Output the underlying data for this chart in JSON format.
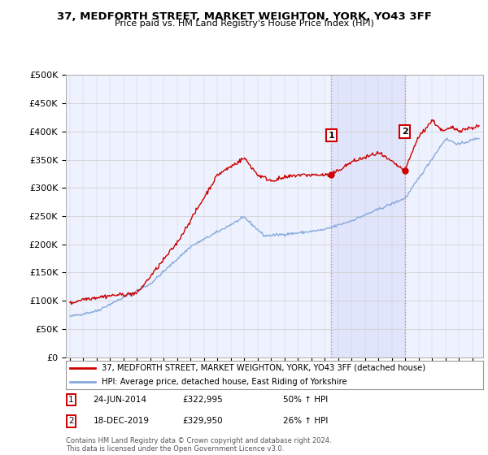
{
  "title": "37, MEDFORTH STREET, MARKET WEIGHTON, YORK, YO43 3FF",
  "subtitle": "Price paid vs. HM Land Registry's House Price Index (HPI)",
  "ylim": [
    0,
    500000
  ],
  "yticks": [
    0,
    50000,
    100000,
    150000,
    200000,
    250000,
    300000,
    350000,
    400000,
    450000,
    500000
  ],
  "ytick_labels": [
    "£0",
    "£50K",
    "£100K",
    "£150K",
    "£200K",
    "£250K",
    "£300K",
    "£350K",
    "£400K",
    "£450K",
    "£500K"
  ],
  "sale1_date": 2014.48,
  "sale1_price": 322995,
  "sale2_date": 2019.96,
  "sale2_price": 329950,
  "line1_color": "#cc0000",
  "line2_color": "#88aadd",
  "vline_color": "#dd8888",
  "vline_style": ":",
  "legend_line1": "37, MEDFORTH STREET, MARKET WEIGHTON, YORK, YO43 3FF (detached house)",
  "legend_line2": "HPI: Average price, detached house, East Riding of Yorkshire",
  "footer1": "Contains HM Land Registry data © Crown copyright and database right 2024.",
  "footer2": "This data is licensed under the Open Government Licence v3.0.",
  "background_color": "#ffffff",
  "plot_bg_color": "#eef2ff"
}
